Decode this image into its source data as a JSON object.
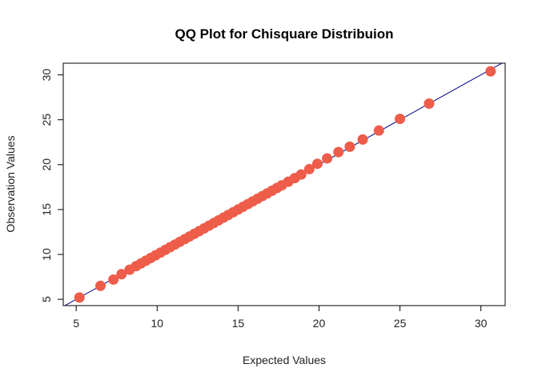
{
  "chart_data": {
    "type": "scatter",
    "title": "QQ Plot for Chisquare Distribuion",
    "xlabel": "Expected Values",
    "ylabel": "Observation Values",
    "xlim": [
      4.2,
      31.5
    ],
    "ylim": [
      4.3,
      31.3
    ],
    "xticks": [
      5,
      10,
      15,
      20,
      25,
      30
    ],
    "yticks": [
      5,
      10,
      15,
      20,
      25,
      30
    ],
    "point_color": "#EE5C4A",
    "line_color": "#00008B",
    "reference_line": {
      "intercept": 0,
      "slope": 1
    },
    "x": [
      5.2,
      6.5,
      7.3,
      7.8,
      8.3,
      8.7,
      9.0,
      9.3,
      9.6,
      9.9,
      10.2,
      10.5,
      10.8,
      11.1,
      11.4,
      11.7,
      12.0,
      12.3,
      12.6,
      12.9,
      13.2,
      13.5,
      13.8,
      14.1,
      14.4,
      14.7,
      15.0,
      15.3,
      15.6,
      15.9,
      16.2,
      16.5,
      16.8,
      17.1,
      17.4,
      17.7,
      18.1,
      18.5,
      18.9,
      19.4,
      19.9,
      20.5,
      21.2,
      21.9,
      22.7,
      23.7,
      25.0,
      26.8,
      30.6
    ],
    "y": [
      5.2,
      6.5,
      7.2,
      7.8,
      8.3,
      8.7,
      9.0,
      9.3,
      9.6,
      9.9,
      10.2,
      10.5,
      10.8,
      11.1,
      11.4,
      11.7,
      12.0,
      12.3,
      12.6,
      12.9,
      13.2,
      13.5,
      13.8,
      14.1,
      14.4,
      14.7,
      15.0,
      15.3,
      15.6,
      15.9,
      16.2,
      16.5,
      16.8,
      17.1,
      17.4,
      17.7,
      18.1,
      18.5,
      18.9,
      19.5,
      20.1,
      20.7,
      21.4,
      22.0,
      22.8,
      23.8,
      25.1,
      26.8,
      30.4
    ]
  }
}
